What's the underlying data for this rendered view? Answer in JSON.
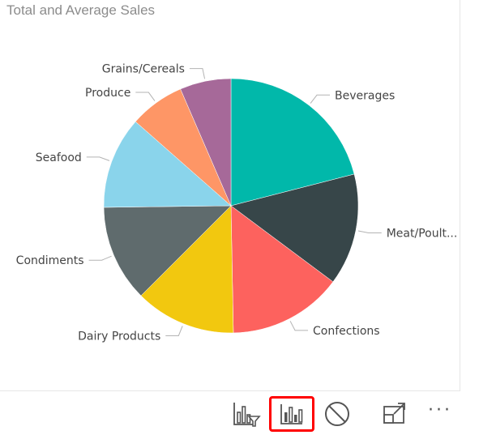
{
  "visual": {
    "title": "Total and Average Sales"
  },
  "chart_data": {
    "type": "pie",
    "title": "Total and Average Sales",
    "legend": "none",
    "slices": [
      {
        "label": "Beverages",
        "value": 21.0,
        "color": "#01B8AA"
      },
      {
        "label": "Meat/Poult...",
        "value": 14.2,
        "color": "#374649"
      },
      {
        "label": "Confections",
        "value": 14.5,
        "color": "#FD625E"
      },
      {
        "label": "Dairy Products",
        "value": 12.8,
        "color": "#F2C80F"
      },
      {
        "label": "Condiments",
        "value": 12.3,
        "color": "#5F6B6D"
      },
      {
        "label": "Seafood",
        "value": 11.7,
        "color": "#8AD4EB"
      },
      {
        "label": "Produce",
        "value": 7.0,
        "color": "#FE9666"
      },
      {
        "label": "Grains/Cereals",
        "value": 6.5,
        "color": "#A66999"
      }
    ]
  },
  "toolbar": {
    "buttons": [
      {
        "name": "drill-filter-icon",
        "selected": false
      },
      {
        "name": "bar-chart-icon",
        "selected": true
      },
      {
        "name": "no-entry-icon",
        "selected": false
      },
      {
        "name": "focus-mode-icon",
        "selected": false
      },
      {
        "name": "more-options-icon",
        "selected": false
      }
    ],
    "more_label": "···"
  }
}
